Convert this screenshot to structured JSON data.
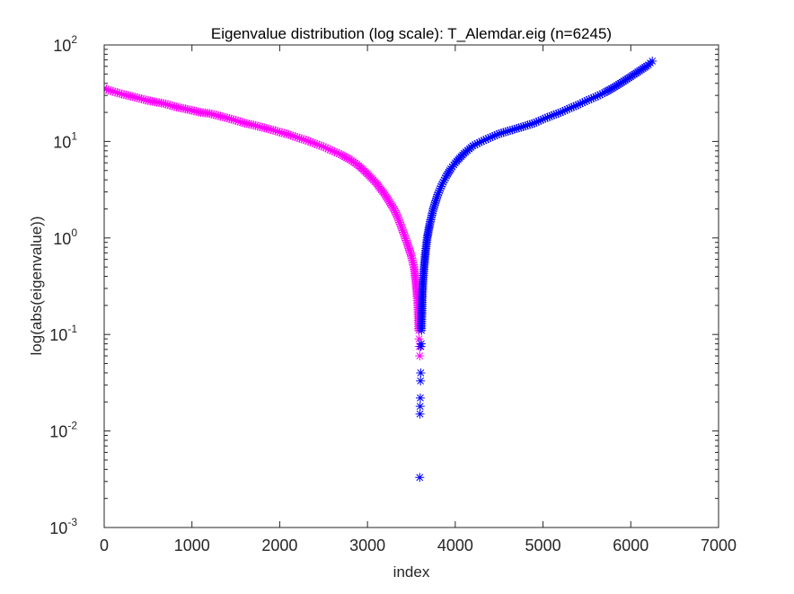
{
  "chart_data": {
    "type": "scatter",
    "title": "Eigenvalue distribution (log scale): T_Alemdar.eig (n=6245)",
    "xlabel": "index",
    "ylabel": "log(abs(eigenvalue))",
    "xlim": [
      0,
      7000
    ],
    "ylim": [
      0.001,
      100
    ],
    "yscale": "log",
    "grid": false,
    "marker": "asterisk",
    "x_ticks": [
      "0",
      "1000",
      "2000",
      "3000",
      "4000",
      "5000",
      "6000",
      "7000"
    ],
    "y_ticks": [
      {
        "value": 0.001,
        "base": "10",
        "exp": "-3"
      },
      {
        "value": 0.01,
        "base": "10",
        "exp": "-2"
      },
      {
        "value": 0.1,
        "base": "10",
        "exp": "-1"
      },
      {
        "value": 1,
        "base": "10",
        "exp": "0"
      },
      {
        "value": 10,
        "base": "10",
        "exp": "1"
      },
      {
        "value": 100,
        "base": "10",
        "exp": "2"
      }
    ],
    "series": [
      {
        "color": "#ff00ff",
        "points": [
          [
            0,
            35.5
          ],
          [
            50,
            34
          ],
          [
            100,
            33
          ],
          [
            200,
            31
          ],
          [
            300,
            29.5
          ],
          [
            400,
            28
          ],
          [
            500,
            26.5
          ],
          [
            600,
            25.5
          ],
          [
            700,
            24.5
          ],
          [
            800,
            23
          ],
          [
            900,
            22
          ],
          [
            1000,
            21
          ],
          [
            1100,
            20
          ],
          [
            1200,
            19.5
          ],
          [
            1300,
            18.5
          ],
          [
            1400,
            17.5
          ],
          [
            1500,
            16.5
          ],
          [
            1600,
            15.5
          ],
          [
            1700,
            14.8
          ],
          [
            1800,
            14
          ],
          [
            1900,
            13.3
          ],
          [
            2000,
            12.5
          ],
          [
            2100,
            11.8
          ],
          [
            2200,
            11
          ],
          [
            2300,
            10.3
          ],
          [
            2400,
            9.5
          ],
          [
            2500,
            8.8
          ],
          [
            2600,
            8
          ],
          [
            2700,
            7.3
          ],
          [
            2800,
            6.5
          ],
          [
            2900,
            5.6
          ],
          [
            3000,
            4.6
          ],
          [
            3100,
            3.7
          ],
          [
            3200,
            2.8
          ],
          [
            3300,
            2
          ],
          [
            3350,
            1.6
          ],
          [
            3400,
            1.2
          ],
          [
            3450,
            0.9
          ],
          [
            3500,
            0.65
          ],
          [
            3530,
            0.5
          ],
          [
            3550,
            0.35
          ],
          [
            3565,
            0.25
          ],
          [
            3575,
            0.18
          ],
          [
            3580,
            0.14
          ],
          [
            3585,
            0.11
          ],
          [
            3588,
            0.09
          ],
          [
            3592,
            0.075
          ],
          [
            3595,
            0.06
          ]
        ]
      },
      {
        "color": "#0000ff",
        "points": [
          [
            3595,
            0.0033
          ],
          [
            3598,
            0.015
          ],
          [
            3600,
            0.018
          ],
          [
            3602,
            0.022
          ],
          [
            3604,
            0.033
          ],
          [
            3606,
            0.04
          ],
          [
            3608,
            0.075
          ],
          [
            3612,
            0.08
          ],
          [
            3615,
            0.11
          ],
          [
            3620,
            0.16
          ],
          [
            3625,
            0.25
          ],
          [
            3632,
            0.35
          ],
          [
            3645,
            0.5
          ],
          [
            3660,
            0.7
          ],
          [
            3680,
            1.0
          ],
          [
            3710,
            1.4
          ],
          [
            3750,
            2
          ],
          [
            3800,
            2.8
          ],
          [
            3850,
            3.6
          ],
          [
            3900,
            4.4
          ],
          [
            3950,
            5.2
          ],
          [
            4000,
            6
          ],
          [
            4100,
            7.5
          ],
          [
            4200,
            9
          ],
          [
            4300,
            10
          ],
          [
            4400,
            11
          ],
          [
            4500,
            12
          ],
          [
            4600,
            12.8
          ],
          [
            4700,
            13.6
          ],
          [
            4800,
            14.5
          ],
          [
            4900,
            15.5
          ],
          [
            5000,
            17
          ],
          [
            5100,
            18.5
          ],
          [
            5200,
            20
          ],
          [
            5300,
            22
          ],
          [
            5400,
            24
          ],
          [
            5500,
            26.5
          ],
          [
            5600,
            29
          ],
          [
            5700,
            32
          ],
          [
            5800,
            36
          ],
          [
            5900,
            41
          ],
          [
            6000,
            47
          ],
          [
            6100,
            54
          ],
          [
            6200,
            62
          ],
          [
            6245,
            68
          ]
        ]
      }
    ]
  }
}
